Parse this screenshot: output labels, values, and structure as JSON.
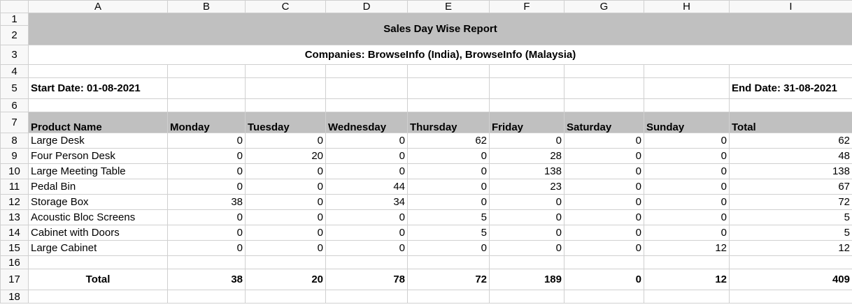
{
  "columns": [
    "A",
    "B",
    "C",
    "D",
    "E",
    "F",
    "G",
    "H",
    "I"
  ],
  "rows": [
    "1",
    "2",
    "3",
    "4",
    "5",
    "6",
    "7",
    "8",
    "9",
    "10",
    "11",
    "12",
    "13",
    "14",
    "15",
    "16",
    "17",
    "18"
  ],
  "report": {
    "title": "Sales Day Wise Report",
    "companies": "Companies: BrowseInfo (India), BrowseInfo (Malaysia)",
    "start_date": "Start Date: 01-08-2021",
    "end_date": "End Date: 31-08-2021"
  },
  "headers": [
    "Product Name",
    "Monday",
    "Tuesday",
    "Wednesday",
    "Thursday",
    "Friday",
    "Saturday",
    "Sunday",
    "Total"
  ],
  "products": [
    {
      "name": "Large Desk",
      "values": [
        "0",
        "0",
        "0",
        "62",
        "0",
        "0",
        "0",
        "62"
      ]
    },
    {
      "name": "Four Person Desk",
      "values": [
        "0",
        "20",
        "0",
        "0",
        "28",
        "0",
        "0",
        "48"
      ]
    },
    {
      "name": "Large Meeting Table",
      "values": [
        "0",
        "0",
        "0",
        "0",
        "138",
        "0",
        "0",
        "138"
      ]
    },
    {
      "name": "Pedal Bin",
      "values": [
        "0",
        "0",
        "44",
        "0",
        "23",
        "0",
        "0",
        "67"
      ]
    },
    {
      "name": "Storage Box",
      "values": [
        "38",
        "0",
        "34",
        "0",
        "0",
        "0",
        "0",
        "72"
      ]
    },
    {
      "name": "Acoustic Bloc Screens",
      "values": [
        "0",
        "0",
        "0",
        "5",
        "0",
        "0",
        "0",
        "5"
      ]
    },
    {
      "name": "Cabinet with Doors",
      "values": [
        "0",
        "0",
        "0",
        "5",
        "0",
        "0",
        "0",
        "5"
      ]
    },
    {
      "name": "Large Cabinet",
      "values": [
        "0",
        "0",
        "0",
        "0",
        "0",
        "0",
        "12",
        "12"
      ]
    }
  ],
  "totals": {
    "label": "Total",
    "values": [
      "38",
      "20",
      "78",
      "72",
      "189",
      "0",
      "12",
      "409"
    ]
  }
}
